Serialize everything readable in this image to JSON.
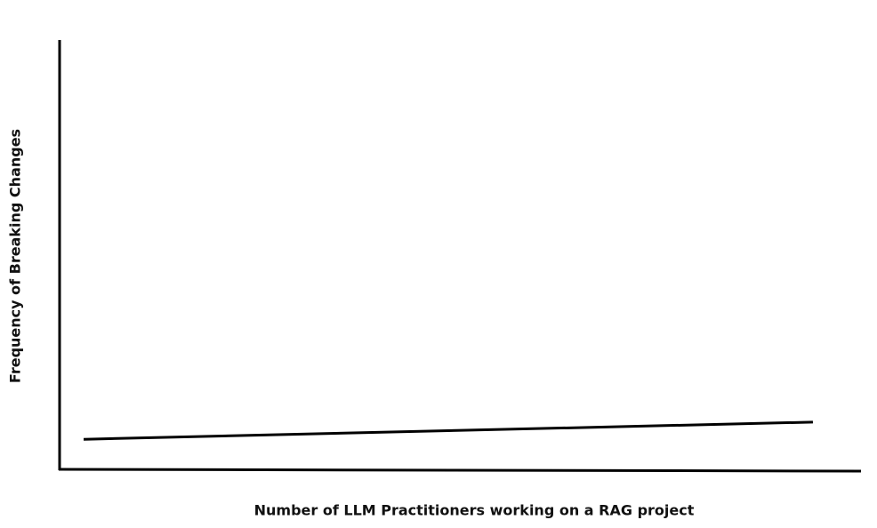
{
  "chart_data": {
    "type": "line",
    "x_label": "Number of LLM Practitioners working on a RAG project",
    "y_label": "Frequency of Breaking Changes",
    "x": [
      0.03,
      0.94
    ],
    "series": [
      {
        "color": "#000000",
        "values": [
          0.07,
          0.11
        ]
      }
    ],
    "xlim": [
      0,
      1
    ],
    "ylim": [
      0,
      1
    ]
  }
}
